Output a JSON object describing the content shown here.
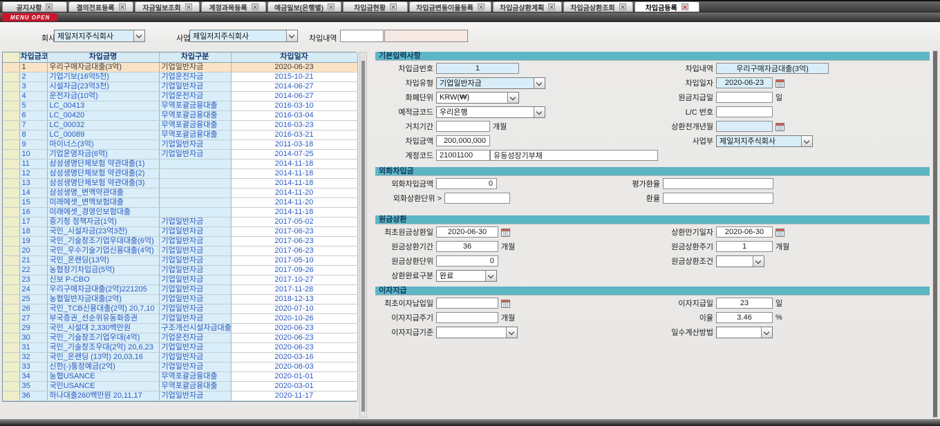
{
  "colors": {
    "section_header": "#5cb6c4",
    "cell_blue": "#d9eef8",
    "selector_col": "#eeeecb",
    "row_highlight": "#fae3c5",
    "data_text": "#2b59c3",
    "readonly_pink": "#f6e9e3",
    "menu_badge": "#c5172e",
    "tab_close_active": "#cc0000"
  },
  "tabs": [
    {
      "label": "공지사항",
      "active": false
    },
    {
      "label": "결의전표등록",
      "active": false
    },
    {
      "label": "자금일보조회",
      "active": false
    },
    {
      "label": "계정과목등록",
      "active": false
    },
    {
      "label": "예금일보(은행별)",
      "active": false
    },
    {
      "label": "차입금현황",
      "active": false
    },
    {
      "label": "차입금변동이율등록",
      "active": false
    },
    {
      "label": "차입금상환계획",
      "active": false
    },
    {
      "label": "차입금상환조회",
      "active": false
    },
    {
      "label": "차입금등록",
      "active": true
    }
  ],
  "menu_open_label": "MENU OPEN",
  "filter": {
    "company_label": "회사",
    "company_value": "제일저지주식회사",
    "site_label": "사업장",
    "site_value": "제일저지주식회사",
    "loan_detail_label": "차입내역",
    "loan_detail_value": "",
    "loan_detail_value2": ""
  },
  "table": {
    "headers": [
      "차입금코드",
      "차입금명",
      "차입구분",
      "차입일자"
    ],
    "rows": [
      {
        "code": "1",
        "name": "우리구매자금대출(3억)",
        "type": "기업일반자금",
        "date": "2020-06-23",
        "selected": true
      },
      {
        "code": "2",
        "name": "기업기보(16억5천)",
        "type": "기업운전자금",
        "date": "2015-10-21",
        "selected": false
      },
      {
        "code": "3",
        "name": "시설자금(23억3천)",
        "type": "기업일반자금",
        "date": "2014-06-27",
        "selected": false
      },
      {
        "code": "4",
        "name": "운전자금(10억)",
        "type": "기업운전자금",
        "date": "2014-06-27",
        "selected": false
      },
      {
        "code": "5",
        "name": "LC_00413",
        "type": "무역포괄금융대출",
        "date": "2016-03-10",
        "selected": false
      },
      {
        "code": "6",
        "name": "LC_00420",
        "type": "무역포괄금융대출",
        "date": "2016-03-04",
        "selected": false
      },
      {
        "code": "7",
        "name": "LC_00032",
        "type": "무역포괄금융대출",
        "date": "2016-03-23",
        "selected": false
      },
      {
        "code": "8",
        "name": "LC_00089",
        "type": "무역포괄금융대출",
        "date": "2016-03-21",
        "selected": false
      },
      {
        "code": "9",
        "name": "마이너스(3억)",
        "type": "기업일반자금",
        "date": "2011-03-18",
        "selected": false
      },
      {
        "code": "10",
        "name": "기업운영자금(6억)",
        "type": "기업일반자금",
        "date": "2014-07-25",
        "selected": false
      },
      {
        "code": "11",
        "name": "삼성생명단체보험 약관대출(1)",
        "type": "",
        "date": "2014-11-18",
        "selected": false
      },
      {
        "code": "12",
        "name": "삼성생명단체보험 약관대출(2)",
        "type": "",
        "date": "2014-11-18",
        "selected": false
      },
      {
        "code": "13",
        "name": "삼성생명단체보험 약관대출(3)",
        "type": "",
        "date": "2014-11-18",
        "selected": false
      },
      {
        "code": "14",
        "name": "삼성생명_변액약관대출",
        "type": "",
        "date": "2014-11-20",
        "selected": false
      },
      {
        "code": "15",
        "name": "미래에셋_변액보험대출",
        "type": "",
        "date": "2014-11-20",
        "selected": false
      },
      {
        "code": "16",
        "name": "미래에셋_경영인보험대출",
        "type": "",
        "date": "2014-11-18",
        "selected": false
      },
      {
        "code": "17",
        "name": "중기청 정책자금(1억)",
        "type": "기업일반자금",
        "date": "2017-05-02",
        "selected": false
      },
      {
        "code": "18",
        "name": "국민_시설자금(23억3천)",
        "type": "기업일반자금",
        "date": "2017-06-23",
        "selected": false
      },
      {
        "code": "19",
        "name": "국민_기술창조기업우대대출(6억)",
        "type": "기업일반자금",
        "date": "2017-06-23",
        "selected": false
      },
      {
        "code": "20",
        "name": "국민_우수기술기업신용대출(4억)",
        "type": "기업일반자금",
        "date": "2017-06-23",
        "selected": false
      },
      {
        "code": "21",
        "name": "국민_온랜딩(13억)",
        "type": "기업일반자금",
        "date": "2017-05-10",
        "selected": false
      },
      {
        "code": "22",
        "name": "농협장기차입금(5억)",
        "type": "기업일반자금",
        "date": "2017-09-26",
        "selected": false
      },
      {
        "code": "23",
        "name": "신보 P-CBO",
        "type": "기업일반자금",
        "date": "2017-10-27",
        "selected": false
      },
      {
        "code": "24",
        "name": "우리구매자금대출(2억)221205",
        "type": "기업일반자금",
        "date": "2017-11-28",
        "selected": false
      },
      {
        "code": "25",
        "name": "농협일반자금대출(2억)",
        "type": "기업일반자금",
        "date": "2018-12-13",
        "selected": false
      },
      {
        "code": "26",
        "name": "국민_TCB신용대출(2억) 20,7,10",
        "type": "기업일반자금",
        "date": "2020-07-10",
        "selected": false
      },
      {
        "code": "27",
        "name": "부국증권_선순위유동화증권",
        "type": "기업일반자금",
        "date": "2020-10-26",
        "selected": false
      },
      {
        "code": "29",
        "name": "국민_시설대 2,330백만원",
        "type": "구조개선시설자금대출",
        "date": "2020-06-23",
        "selected": false
      },
      {
        "code": "30",
        "name": "국민_기술창조기업우대(4억)",
        "type": "기업운전자금",
        "date": "2020-06-23",
        "selected": false
      },
      {
        "code": "31",
        "name": "국민_기술창조우대(2억) 20,6,23",
        "type": "기업일반자금",
        "date": "2020-06-23",
        "selected": false
      },
      {
        "code": "32",
        "name": "국민_온랜딩 (13억) 20,03,16",
        "type": "기업일반자금",
        "date": "2020-03-16",
        "selected": false
      },
      {
        "code": "33",
        "name": "신한(-)통장예금(2억)",
        "type": "기업일반자금",
        "date": "2020-08-03",
        "selected": false
      },
      {
        "code": "34",
        "name": "농협USANCE",
        "type": "무역포괄금융대출",
        "date": "2020-01-01",
        "selected": false
      },
      {
        "code": "35",
        "name": "국민USANCE",
        "type": "무역포괄금융대출",
        "date": "2020-03-01",
        "selected": false
      },
      {
        "code": "36",
        "name": "하나대출260백만원 20,11,17",
        "type": "기업일반자금",
        "date": "2020-11-17",
        "selected": false
      }
    ]
  },
  "panel": {
    "basic": {
      "title": "기본입력사항",
      "loan_no": {
        "label": "차입금번호",
        "value": "1"
      },
      "loan_detail": {
        "label": "차입내역",
        "value": "우리구매자금대출(3억)"
      },
      "loan_type": {
        "label": "차입유형",
        "value": "기업일반자금"
      },
      "loan_date": {
        "label": "차입일자",
        "value": "2020-06-23"
      },
      "currency": {
        "label": "화폐단위",
        "value": "KRW(₩)"
      },
      "principal_pay_day": {
        "label": "원금지급일",
        "value": "",
        "suffix": "일"
      },
      "deposit_code": {
        "label": "예적금코드",
        "value": "우리은행"
      },
      "lc_no": {
        "label": "L/C 번호",
        "value": ""
      },
      "grace_period": {
        "label": "거치기간",
        "value": "",
        "suffix": "개월"
      },
      "repay_before_ym": {
        "label": "상환전개년월",
        "value": ""
      },
      "loan_amount": {
        "label": "차입금액",
        "value": "200,000,000"
      },
      "division": {
        "label": "사업부",
        "value": "제일저지주식회사"
      },
      "account_code": {
        "label": "계정코드",
        "value": "21001100",
        "value2": "유동성장기부채"
      }
    },
    "foreign": {
      "title": "외화차입금",
      "fx_amount": {
        "label": "외화차입금액",
        "value": "0"
      },
      "eval_rate": {
        "label": "평가환율",
        "value": ""
      },
      "fx_repay_unit": {
        "label": "외화상환단위 >",
        "value": ""
      },
      "ex_rate": {
        "label": "환율",
        "value": ""
      }
    },
    "principal": {
      "title": "원금상환",
      "first_repay_date": {
        "label": "최초원금상환일",
        "value": "2020-06-30"
      },
      "maturity_date": {
        "label": "상환만기일자",
        "value": "2020-06-30"
      },
      "repay_period": {
        "label": "원금상환기간",
        "value": "36",
        "suffix": "개월"
      },
      "repay_cycle": {
        "label": "원금상환주기",
        "value": "1",
        "suffix": "개월"
      },
      "repay_unit": {
        "label": "원금상환단위",
        "value": "0"
      },
      "repay_condition": {
        "label": "원금상환조건",
        "value": ""
      },
      "repay_complete": {
        "label": "상환완료구분",
        "value": "완료"
      }
    },
    "interest": {
      "title": "이자지급",
      "first_interest_date": {
        "label": "최초이자납입일",
        "value": ""
      },
      "interest_pay_day": {
        "label": "이자지급일",
        "value": "23",
        "suffix": "일"
      },
      "interest_cycle": {
        "label": "이자지급주기",
        "value": "",
        "suffix": "개월"
      },
      "interest_rate": {
        "label": "이율",
        "value": "3.46",
        "suffix": "%"
      },
      "interest_basis": {
        "label": "이자지급기준",
        "value": ""
      },
      "day_count_method": {
        "label": "일수계산방법",
        "value": ""
      }
    }
  }
}
